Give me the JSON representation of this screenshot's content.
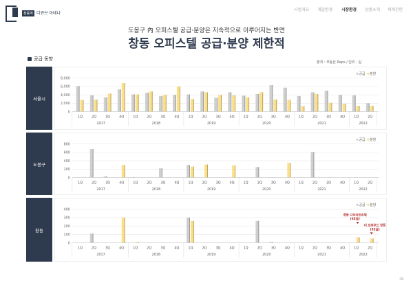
{
  "header": {
    "logo_badge": "창동역",
    "logo_text": "더큐브 아테나",
    "nav": [
      "사업개요",
      "개발환경",
      "시장환경",
      "상품소개",
      "세제관련"
    ],
    "active_nav": 2
  },
  "subtitle": "도봉구 內 오피스텔 공급·분양은 지속적으로 이루어지는 반면",
  "title": "창동 오피스텔 공급·분양 제한적",
  "section": "공급 동향",
  "source": "출처 : 부동산 Reps / 단위 : 실",
  "page_number": "29",
  "colors": {
    "supply": "#cfcfcf",
    "sale": "#fbe08a",
    "panel": "#2e3a4e",
    "annotation": "#b22222"
  },
  "chart_data": [
    {
      "type": "bar",
      "region": "서울시",
      "categories": [
        "1Q",
        "2Q",
        "3Q",
        "4Q",
        "1Q",
        "2Q",
        "3Q",
        "4Q",
        "1Q",
        "2Q",
        "3Q",
        "4Q",
        "1Q",
        "2Q",
        "3Q",
        "4Q",
        "1Q",
        "2Q",
        "3Q",
        "4Q",
        "1Q",
        "2Q"
      ],
      "years": [
        {
          "label": "2017",
          "n": 4
        },
        {
          "label": "2018",
          "n": 4
        },
        {
          "label": "2019",
          "n": 4
        },
        {
          "label": "2020",
          "n": 4
        },
        {
          "label": "2021",
          "n": 4
        },
        {
          "label": "2022",
          "n": 2
        }
      ],
      "ylim": [
        0,
        8000
      ],
      "yticks": [
        "0",
        "2,000",
        "4,000",
        "6,000",
        "8,000"
      ],
      "legend": [
        "공급",
        "분양"
      ],
      "series": [
        {
          "name": "공급",
          "values": [
            6100,
            3900,
            3400,
            5300,
            4100,
            4500,
            3700,
            4000,
            4100,
            4800,
            3300,
            4600,
            3800,
            4200,
            6300,
            5700,
            3700,
            4600,
            5000,
            4000,
            3900,
            2000
          ]
        },
        {
          "name": "분양",
          "values": [
            2800,
            2900,
            4300,
            6800,
            4100,
            4800,
            4000,
            6000,
            3000,
            4600,
            4000,
            3900,
            3400,
            4600,
            2900,
            2800,
            1300,
            4200,
            2100,
            1900,
            1400,
            1400
          ]
        }
      ]
    },
    {
      "type": "bar",
      "region": "도봉구",
      "categories": [
        "1Q",
        "2Q",
        "3Q",
        "4Q",
        "1Q",
        "2Q",
        "3Q",
        "4Q",
        "1Q",
        "2Q",
        "3Q",
        "4Q",
        "1Q",
        "2Q",
        "3Q",
        "4Q",
        "1Q",
        "2Q",
        "3Q",
        "4Q",
        "1Q",
        "2Q"
      ],
      "years": [
        {
          "label": "2017",
          "n": 4
        },
        {
          "label": "2018",
          "n": 4
        },
        {
          "label": "2019",
          "n": 4
        },
        {
          "label": "2020",
          "n": 4
        },
        {
          "label": "2021",
          "n": 4
        },
        {
          "label": "2022",
          "n": 2
        }
      ],
      "ylim": [
        0,
        800
      ],
      "yticks": [
        "0",
        "200",
        "400",
        "600",
        "800"
      ],
      "legend": [
        "공급",
        "분양"
      ],
      "series": [
        {
          "name": "공급",
          "values": [
            0,
            680,
            30,
            0,
            10,
            0,
            220,
            0,
            300,
            0,
            0,
            0,
            0,
            250,
            5,
            0,
            0,
            610,
            0,
            0,
            0,
            0
          ]
        },
        {
          "name": "분양",
          "values": [
            0,
            0,
            0,
            300,
            0,
            0,
            0,
            0,
            260,
            310,
            0,
            290,
            0,
            0,
            0,
            350,
            0,
            0,
            0,
            0,
            0,
            0
          ]
        }
      ]
    },
    {
      "type": "bar",
      "region": "창동",
      "categories": [
        "1Q",
        "2Q",
        "3Q",
        "4Q",
        "1Q",
        "2Q",
        "3Q",
        "4Q",
        "1Q",
        "2Q",
        "3Q",
        "4Q",
        "1Q",
        "2Q",
        "3Q",
        "4Q",
        "1Q",
        "2Q",
        "3Q",
        "4Q",
        "1Q",
        "2Q"
      ],
      "years": [
        {
          "label": "2017",
          "n": 4
        },
        {
          "label": "2018",
          "n": 4
        },
        {
          "label": "2019",
          "n": 4
        },
        {
          "label": "2020",
          "n": 4
        },
        {
          "label": "2021",
          "n": 4
        },
        {
          "label": "2022",
          "n": 2
        }
      ],
      "ylim": [
        0,
        400
      ],
      "yticks": [
        "0",
        "100",
        "200",
        "300",
        "400"
      ],
      "legend": [
        "공급",
        "분양"
      ],
      "series": [
        {
          "name": "공급",
          "values": [
            0,
            110,
            0,
            0,
            0,
            0,
            0,
            0,
            300,
            0,
            0,
            0,
            0,
            260,
            10,
            0,
            0,
            0,
            0,
            0,
            0,
            0
          ]
        },
        {
          "name": "분양",
          "values": [
            0,
            0,
            0,
            300,
            10,
            0,
            0,
            0,
            260,
            0,
            0,
            0,
            0,
            0,
            0,
            0,
            0,
            0,
            0,
            0,
            65,
            52
          ]
        }
      ],
      "annotations": [
        {
          "index": 20,
          "lines": [
            "창동 다우아트리체",
            "(65실)"
          ]
        },
        {
          "index": 21,
          "lines": [
            "더 프라우드 창동",
            "(52실)"
          ]
        }
      ]
    }
  ]
}
